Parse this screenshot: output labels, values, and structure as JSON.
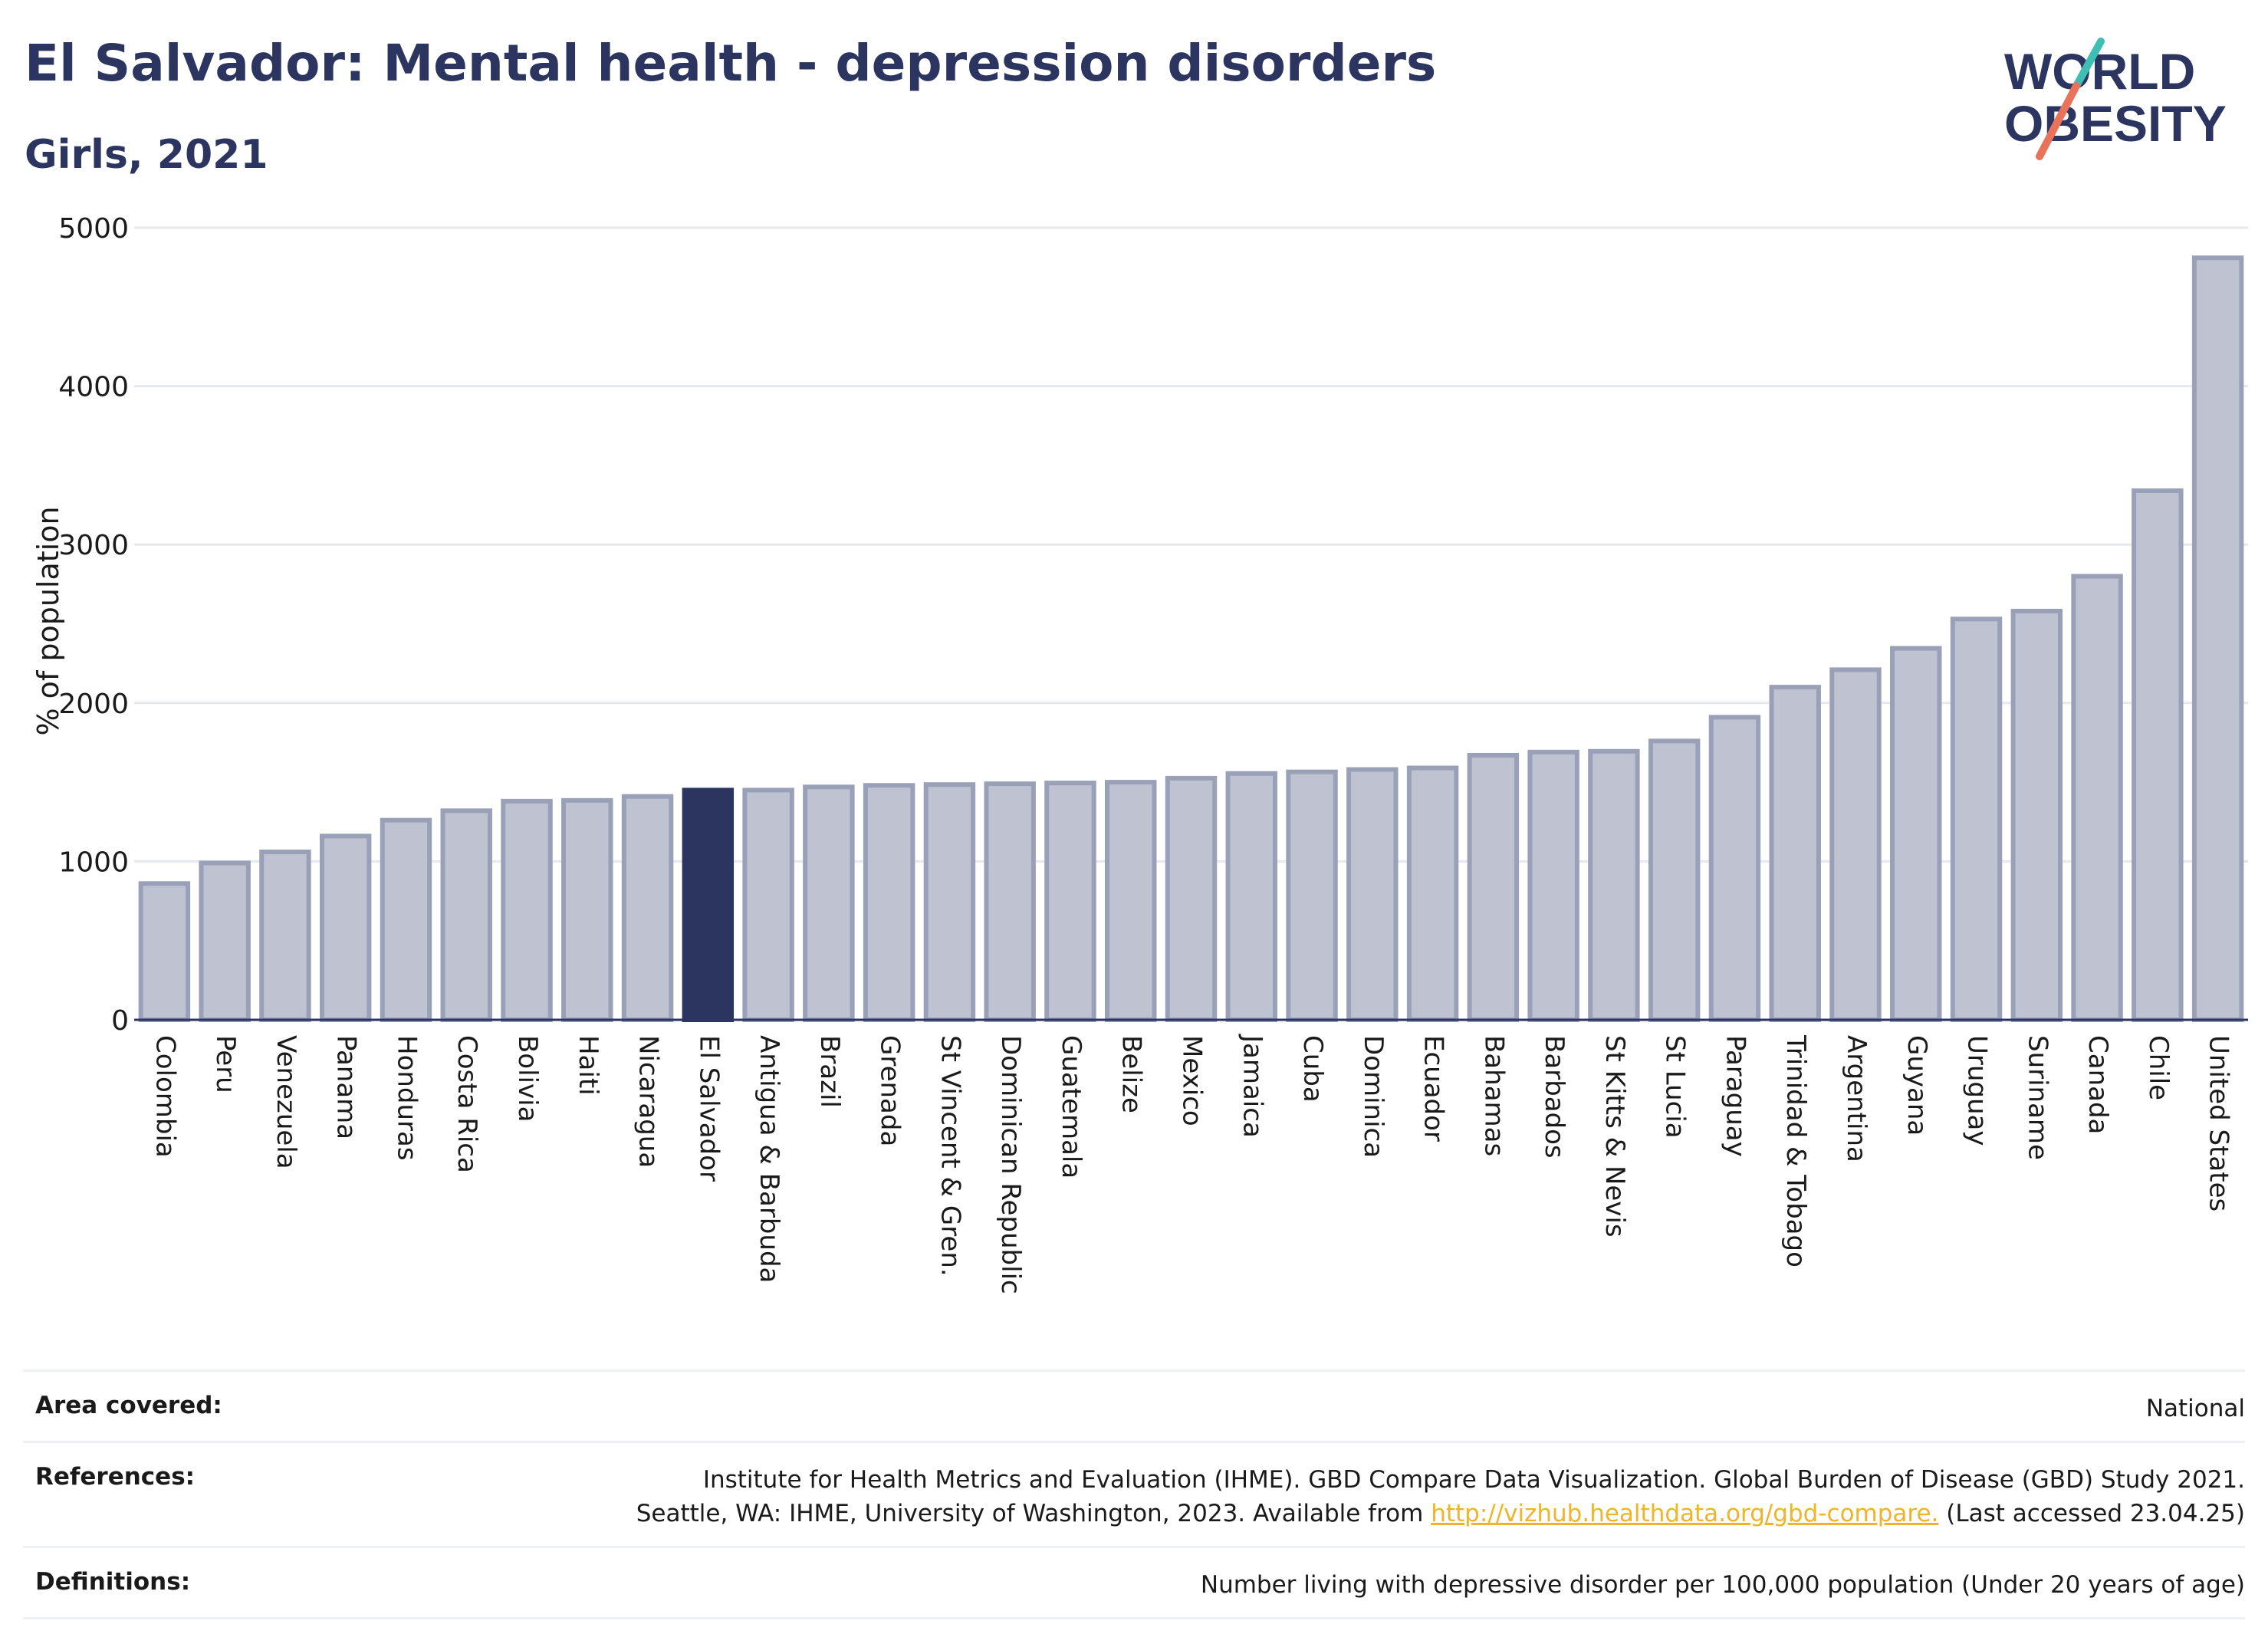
{
  "header": {
    "title": "El Salvador: Mental health - depression disorders",
    "subtitle": "Girls, 2021"
  },
  "logo": {
    "line1": "WORLD",
    "line2": "OBESITY",
    "accent_teal": "#3fbfb4",
    "accent_coral": "#e8735a"
  },
  "colors": {
    "bar_default": "#bfc3d1",
    "bar_outline": "#9aa0b8",
    "bar_highlight": "#2b3560",
    "grid": "#e6e8ef",
    "link": "#f0b429"
  },
  "chart_data": {
    "type": "bar",
    "ylabel": "% of population",
    "xlabel": "",
    "ylim": [
      0,
      5000
    ],
    "yticks": [
      0,
      1000,
      2000,
      3000,
      4000,
      5000
    ],
    "highlight": "El Salvador",
    "grid": true,
    "categories": [
      "Colombia",
      "Peru",
      "Venezuela",
      "Panama",
      "Honduras",
      "Costa Rica",
      "Bolivia",
      "Haiti",
      "Nicaragua",
      "El Salvador",
      "Antigua & Barbuda",
      "Brazil",
      "Grenada",
      "St Vincent & Gren.",
      "Dominican Republic",
      "Guatemala",
      "Belize",
      "Mexico",
      "Jamaica",
      "Cuba",
      "Dominica",
      "Ecuador",
      "Bahamas",
      "Barbados",
      "St Kitts & Nevis",
      "St Lucia",
      "Paraguay",
      "Trinidad & Tobago",
      "Argentina",
      "Guyana",
      "Uruguay",
      "Suriname",
      "Canada",
      "Chile",
      "United States"
    ],
    "values": [
      860,
      990,
      1060,
      1160,
      1260,
      1320,
      1380,
      1385,
      1410,
      1450,
      1450,
      1470,
      1480,
      1485,
      1490,
      1495,
      1500,
      1525,
      1555,
      1565,
      1580,
      1590,
      1670,
      1690,
      1695,
      1760,
      1910,
      2100,
      2210,
      2345,
      2530,
      2580,
      2800,
      3340,
      4810
    ]
  },
  "footer": {
    "area_label": "Area covered:",
    "area_value": "National",
    "references_label": "References:",
    "references_line1": "Institute for Health Metrics and Evaluation (IHME). GBD Compare Data Visualization. Global Burden of Disease (GBD) Study 2021.",
    "references_line2_pre": "Seattle, WA: IHME, University of Washington, 2023. Available from ",
    "references_link": "http://vizhub.healthdata.org/gbd-compare.",
    "references_line2_post": " (Last accessed 23.04.25)",
    "definitions_label": "Definitions:",
    "definitions_value": "Number living with depressive disorder per 100,000 population (Under 20 years of age)"
  }
}
